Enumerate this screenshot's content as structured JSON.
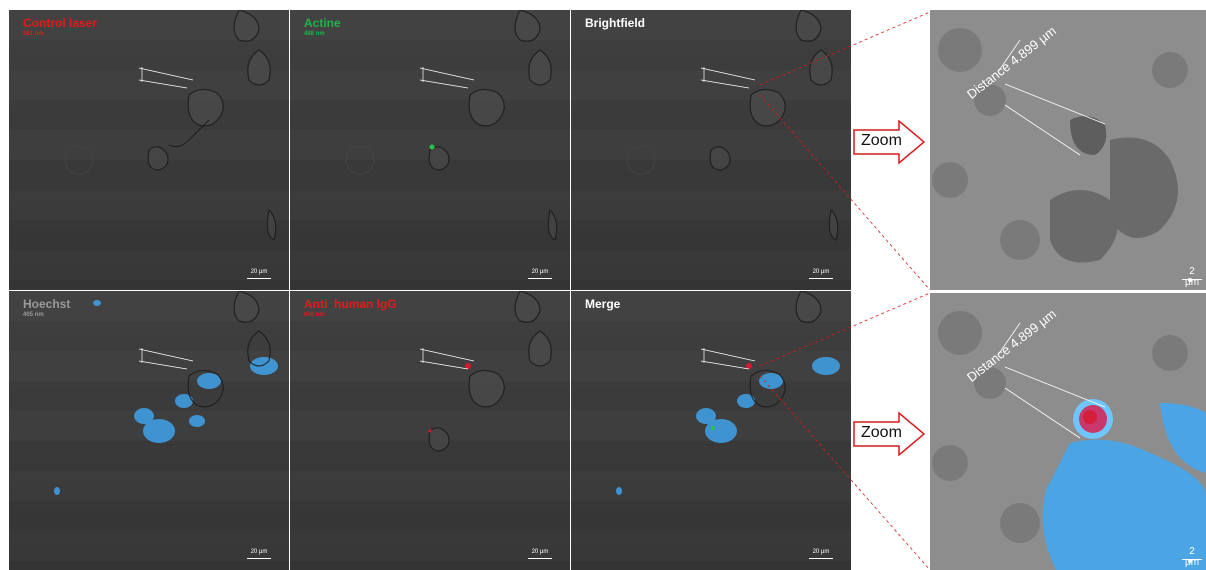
{
  "rows": [
    {
      "panels": [
        {
          "title": "Control laser",
          "subtitle": "561 nm",
          "title_color": "#e11b1b",
          "scalebar": "20 µm"
        },
        {
          "title": "Actine",
          "subtitle": "488 nm",
          "title_color": "#1fb34a",
          "scalebar": "20 µm"
        },
        {
          "title": "Brightfield",
          "subtitle": "",
          "title_color": "#ffffff",
          "scalebar": "20 µm"
        }
      ],
      "zoom_label": "Zoom",
      "zoom_distance": "Distance 4.899 µm",
      "zoom_scalebar": "2 µm"
    },
    {
      "panels": [
        {
          "title": "Hoechst",
          "subtitle": "405 nm",
          "title_color": "#9a9a9a",
          "scalebar": "20 µm"
        },
        {
          "title": "Anti  human IgG",
          "subtitle": "640 nm",
          "title_color": "#e11b1b",
          "scalebar": "20 µm"
        },
        {
          "title": "Merge",
          "subtitle": "",
          "title_color": "#ffffff",
          "scalebar": "20 µm"
        }
      ],
      "zoom_label": "Zoom",
      "zoom_distance": "Distance 4.899 µm",
      "zoom_scalebar": "2 µm"
    }
  ],
  "colors": {
    "nucleus_stain": "#3fa9f5",
    "igg_stain": "#d8182f",
    "actin_stain": "#27c24c",
    "guide_line": "#d81b1b"
  }
}
